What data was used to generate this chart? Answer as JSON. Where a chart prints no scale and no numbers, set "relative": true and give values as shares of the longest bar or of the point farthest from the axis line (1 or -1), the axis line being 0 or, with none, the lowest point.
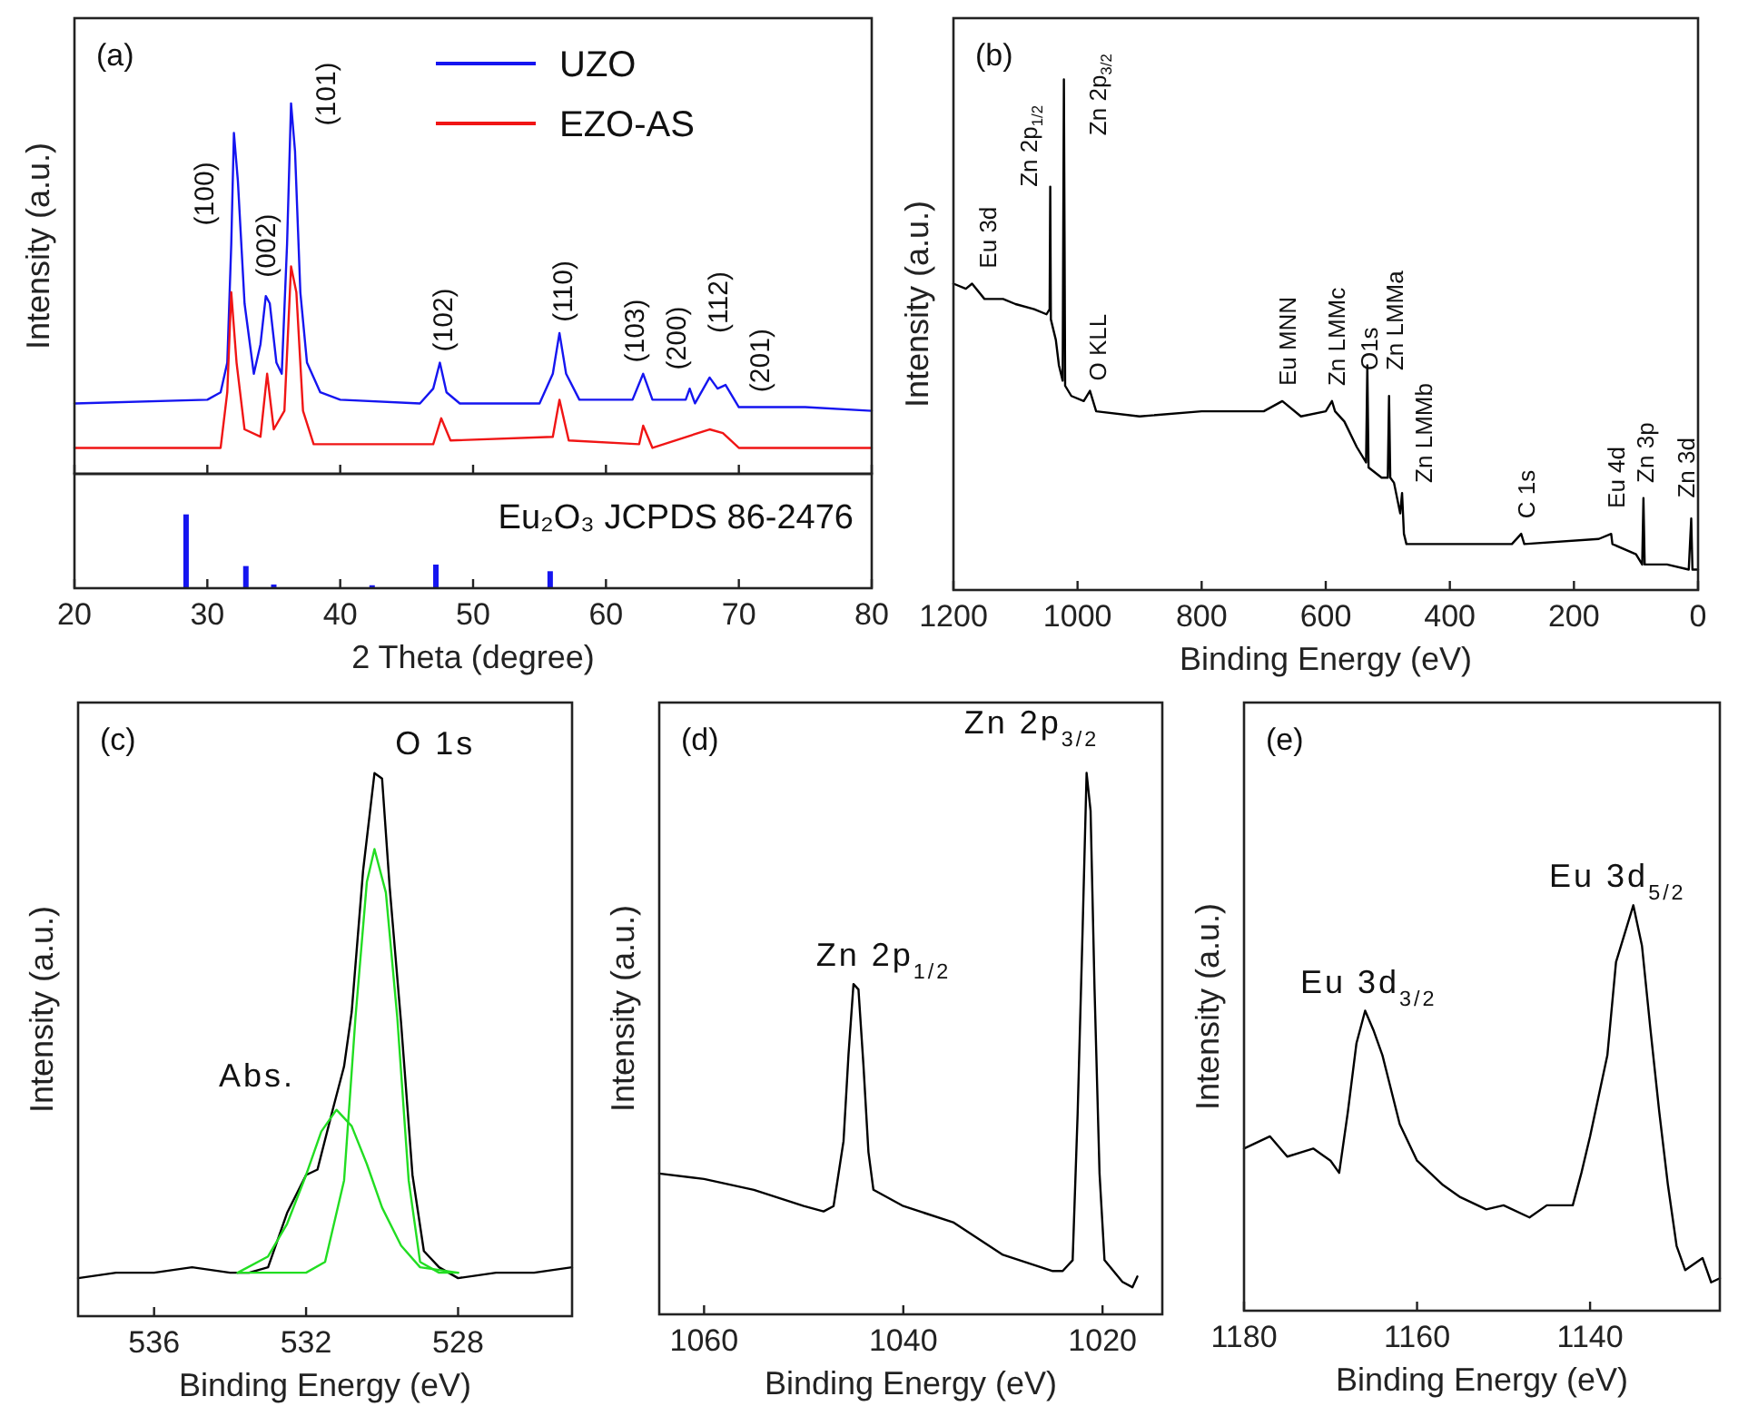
{
  "chart_data": [
    {
      "type": "line",
      "relative": true,
      "xlim": [
        20,
        80
      ],
      "xticks": [
        20,
        30,
        40,
        50,
        60,
        70,
        80
      ],
      "tick_labels": false,
      "ylabel": "Intensity (a.u.)",
      "legend": "top right",
      "series": [
        {
          "name": "UZO",
          "color": "#1515f0",
          "x": [
            20,
            30,
            31,
            31.5,
            31.8,
            32.0,
            32.3,
            32.8,
            33.5,
            34.0,
            34.4,
            34.7,
            35.2,
            35.6,
            36.0,
            36.3,
            36.6,
            37.0,
            37.5,
            38.5,
            40,
            46,
            47,
            47.5,
            48,
            49,
            55,
            56,
            56.5,
            57,
            58,
            62,
            62.8,
            63.5,
            66,
            66.3,
            66.7,
            67.8,
            68.4,
            69,
            70,
            75,
            80
          ],
          "values": [
            0.19,
            0.2,
            0.22,
            0.3,
            0.62,
            0.92,
            0.79,
            0.46,
            0.27,
            0.35,
            0.48,
            0.46,
            0.3,
            0.27,
            0.62,
            1.0,
            0.87,
            0.49,
            0.3,
            0.22,
            0.2,
            0.19,
            0.23,
            0.3,
            0.22,
            0.19,
            0.19,
            0.27,
            0.38,
            0.27,
            0.2,
            0.2,
            0.27,
            0.2,
            0.2,
            0.23,
            0.19,
            0.26,
            0.23,
            0.24,
            0.18,
            0.18,
            0.17
          ]
        },
        {
          "name": "EZO-AS",
          "color": "#f01515",
          "x": [
            20,
            31,
            31.5,
            31.8,
            32.2,
            32.8,
            34,
            34.5,
            35,
            35.8,
            36.3,
            36.7,
            37.2,
            38,
            47,
            47.6,
            48.3,
            56,
            56.5,
            57.2,
            62.5,
            62.8,
            63.5,
            67.8,
            68.8,
            70,
            80
          ],
          "values": [
            0.07,
            0.07,
            0.22,
            0.49,
            0.3,
            0.12,
            0.1,
            0.27,
            0.12,
            0.17,
            0.56,
            0.49,
            0.17,
            0.08,
            0.08,
            0.15,
            0.09,
            0.1,
            0.2,
            0.09,
            0.08,
            0.13,
            0.07,
            0.12,
            0.11,
            0.07,
            0.07
          ]
        }
      ],
      "annotations": [
        "(a)",
        "(100)",
        "(002)",
        "(101)",
        "(102)",
        "(110)",
        "(103)",
        "(200)",
        "(112)",
        "(201)"
      ]
    },
    {
      "type": "bar",
      "relative": true,
      "xlim": [
        20,
        80
      ],
      "xticks": [
        20,
        30,
        40,
        50,
        60,
        70,
        80
      ],
      "tick_labels": "x",
      "xlabel": "2 Theta (degree)",
      "color": "#1515f0",
      "x": [
        28.4,
        32.9,
        35.0,
        42.4,
        47.2,
        55.8
      ],
      "values": [
        1.0,
        0.3,
        0.05,
        0.04,
        0.32,
        0.23
      ],
      "annotations": [
        "Eu₂O₃ JCPDS 86-2476"
      ]
    },
    {
      "type": "line",
      "relative": true,
      "xlim": [
        1200,
        0
      ],
      "xticks": [
        1200,
        1000,
        800,
        600,
        400,
        200,
        0
      ],
      "tick_labels": "x",
      "xlabel": "Binding Energy (eV)",
      "ylabel": "Intensity (a.u.)",
      "series": [
        {
          "color": "#000000",
          "x": [
            1200,
            1180,
            1170,
            1150,
            1120,
            1100,
            1070,
            1050,
            1045,
            1044,
            1043,
            1035,
            1030,
            1024,
            1022,
            1020,
            1010,
            990,
            980,
            970,
            900,
            800,
            700,
            670,
            640,
            600,
            590,
            585,
            570,
            550,
            535,
            533,
            531,
            510,
            500,
            498,
            496,
            490,
            480,
            477,
            474,
            470,
            400,
            300,
            285,
            280,
            160,
            140,
            138,
            100,
            90,
            88,
            86,
            50,
            15,
            11,
            9,
            0
          ],
          "values": [
            0.6,
            0.59,
            0.6,
            0.57,
            0.57,
            0.56,
            0.55,
            0.54,
            0.55,
            0.79,
            0.53,
            0.49,
            0.44,
            0.41,
            1.0,
            0.4,
            0.38,
            0.37,
            0.39,
            0.35,
            0.34,
            0.35,
            0.35,
            0.37,
            0.34,
            0.35,
            0.37,
            0.35,
            0.33,
            0.28,
            0.25,
            0.44,
            0.24,
            0.22,
            0.22,
            0.38,
            0.22,
            0.21,
            0.15,
            0.19,
            0.11,
            0.09,
            0.09,
            0.09,
            0.11,
            0.09,
            0.1,
            0.11,
            0.09,
            0.07,
            0.05,
            0.18,
            0.05,
            0.05,
            0.04,
            0.14,
            0.04,
            0.04
          ]
        }
      ],
      "annotations": [
        "(b)",
        "Eu 3d",
        "Zn 2p$_{1/2}$",
        "Zn 2p$_{3/2}$",
        "O KLL",
        "Eu MNN",
        "Zn LMMc",
        "O1s",
        "Zn LMMa",
        "Zn LMMb",
        "C 1s",
        "Eu 4d",
        "Zn 3p",
        "Zn 3d"
      ]
    },
    {
      "type": "line",
      "relative": true,
      "xlim": [
        538,
        525
      ],
      "xticks": [
        536,
        532,
        528
      ],
      "tick_labels": "x",
      "xlabel": "Binding Energy (eV)",
      "ylabel": "Intensity (a.u.)",
      "series": [
        {
          "color": "#000000",
          "x": [
            538,
            537,
            536,
            535,
            534,
            533.5,
            533,
            532.5,
            532,
            531.7,
            531.3,
            531,
            530.8,
            530.5,
            530.2,
            530.0,
            529.8,
            529.5,
            529.2,
            528.9,
            528.5,
            528,
            527,
            526,
            525
          ],
          "values": [
            0.07,
            0.08,
            0.08,
            0.09,
            0.08,
            0.08,
            0.09,
            0.19,
            0.26,
            0.27,
            0.38,
            0.46,
            0.56,
            0.82,
            1.0,
            0.99,
            0.79,
            0.54,
            0.26,
            0.12,
            0.09,
            0.07,
            0.08,
            0.08,
            0.09
          ]
        },
        {
          "color": "#22dd22",
          "x": [
            533.8,
            533,
            532.5,
            532,
            531.6,
            531.2,
            530.8,
            530.4,
            530,
            529.5,
            529,
            528
          ],
          "values": [
            0.08,
            0.11,
            0.17,
            0.26,
            0.34,
            0.38,
            0.35,
            0.28,
            0.2,
            0.13,
            0.09,
            0.08
          ]
        },
        {
          "color": "#22dd22",
          "x": [
            533.8,
            532,
            531.5,
            531,
            530.7,
            530.4,
            530.2,
            529.9,
            529.6,
            529.3,
            529.0,
            528.5,
            528
          ],
          "values": [
            0.08,
            0.08,
            0.1,
            0.25,
            0.55,
            0.8,
            0.86,
            0.78,
            0.55,
            0.25,
            0.1,
            0.08,
            0.08
          ]
        }
      ],
      "annotations": [
        "(c)",
        "O 1s",
        "Abs."
      ]
    },
    {
      "type": "line",
      "relative": true,
      "xlim": [
        1064.5,
        1014
      ],
      "xticks": [
        1060,
        1040,
        1020
      ],
      "tick_labels": "x",
      "xlabel": "Binding Energy (eV)",
      "ylabel": "Intensity (a.u.)",
      "series": [
        {
          "color": "#000000",
          "x": [
            1064.5,
            1060,
            1055,
            1050,
            1048,
            1047,
            1046,
            1045.5,
            1045,
            1044.5,
            1044,
            1043.5,
            1043,
            1040,
            1035,
            1030,
            1025,
            1024,
            1023,
            1022.5,
            1022,
            1021.6,
            1021.2,
            1020.8,
            1020.3,
            1019.8,
            1018,
            1017,
            1016.5
          ],
          "values": [
            0.26,
            0.25,
            0.23,
            0.2,
            0.19,
            0.2,
            0.32,
            0.48,
            0.61,
            0.6,
            0.46,
            0.3,
            0.23,
            0.2,
            0.17,
            0.11,
            0.08,
            0.08,
            0.1,
            0.37,
            0.71,
            1.0,
            0.93,
            0.6,
            0.26,
            0.1,
            0.06,
            0.05,
            0.07
          ]
        }
      ],
      "annotations": [
        "(d)",
        "Zn 2p$_{1/2}$",
        "Zn 2p$_{3/2}$"
      ]
    },
    {
      "type": "line",
      "relative": true,
      "xlim": [
        1180,
        1125
      ],
      "xticks": [
        1180,
        1160,
        1140
      ],
      "tick_labels": "x",
      "xlabel": "Binding Energy (eV)",
      "ylabel": "Intensity (a.u.)",
      "series": [
        {
          "color": "#000000",
          "x": [
            1180,
            1177,
            1175,
            1172,
            1170,
            1169,
            1168,
            1167,
            1166,
            1165,
            1164,
            1162,
            1160,
            1157,
            1155,
            1152,
            1150,
            1147,
            1145,
            1142,
            1141,
            1140,
            1138,
            1137,
            1136,
            1135,
            1134,
            1133,
            1132,
            1131,
            1130,
            1129,
            1127,
            1126,
            1125
          ],
          "values": [
            0.4,
            0.43,
            0.38,
            0.4,
            0.37,
            0.34,
            0.49,
            0.66,
            0.74,
            0.69,
            0.63,
            0.46,
            0.37,
            0.31,
            0.28,
            0.25,
            0.26,
            0.23,
            0.26,
            0.26,
            0.34,
            0.43,
            0.63,
            0.86,
            0.93,
            1.0,
            0.9,
            0.69,
            0.49,
            0.31,
            0.16,
            0.1,
            0.13,
            0.07,
            0.08
          ]
        }
      ],
      "annotations": [
        "(e)",
        "Eu 3d$_{3/2}$",
        "Eu 3d$_{5/2}$"
      ]
    }
  ]
}
